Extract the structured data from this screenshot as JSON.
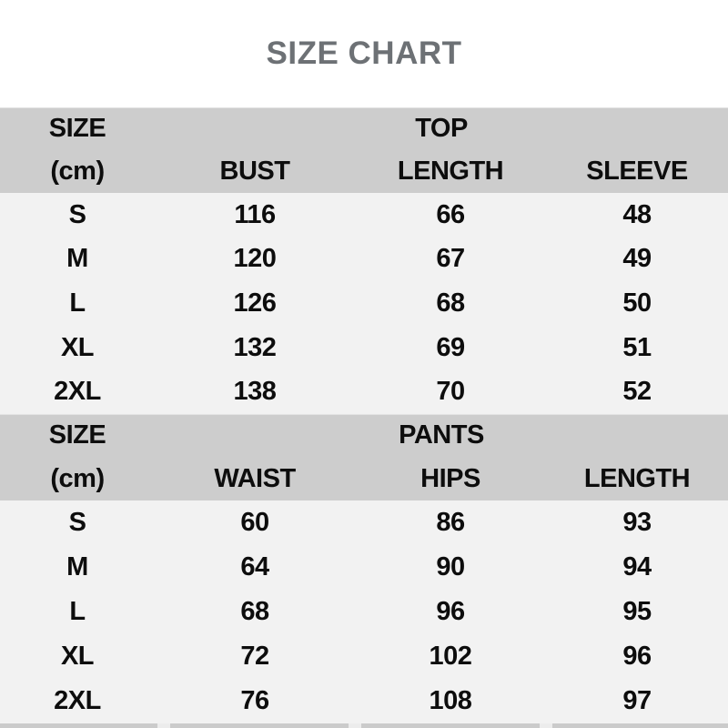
{
  "title": "SIZE CHART",
  "colors": {
    "header_bg": "#cdcdcd",
    "rows_bg": "#f2f2f2",
    "title_color": "#6d7175",
    "text_color": "#0d0d0d",
    "page_bg": "#ffffff"
  },
  "chart_data": [
    {
      "type": "table",
      "section_title": "TOP",
      "size_label": "SIZE",
      "unit_label": "(cm)",
      "columns": [
        "BUST",
        "LENGTH",
        "SLEEVE"
      ],
      "rows": [
        {
          "size": "S",
          "values": [
            116,
            66,
            48
          ]
        },
        {
          "size": "M",
          "values": [
            120,
            67,
            49
          ]
        },
        {
          "size": "L",
          "values": [
            126,
            68,
            50
          ]
        },
        {
          "size": "XL",
          "values": [
            132,
            69,
            51
          ]
        },
        {
          "size": "2XL",
          "values": [
            138,
            70,
            52
          ]
        }
      ]
    },
    {
      "type": "table",
      "section_title": "PANTS",
      "size_label": "SIZE",
      "unit_label": "(cm)",
      "columns": [
        "WAIST",
        "HIPS",
        "LENGTH"
      ],
      "rows": [
        {
          "size": "S",
          "values": [
            60,
            86,
            93
          ]
        },
        {
          "size": "M",
          "values": [
            64,
            90,
            94
          ]
        },
        {
          "size": "L",
          "values": [
            68,
            96,
            95
          ]
        },
        {
          "size": "XL",
          "values": [
            72,
            102,
            96
          ]
        },
        {
          "size": "2XL",
          "values": [
            76,
            108,
            97
          ]
        }
      ]
    }
  ]
}
